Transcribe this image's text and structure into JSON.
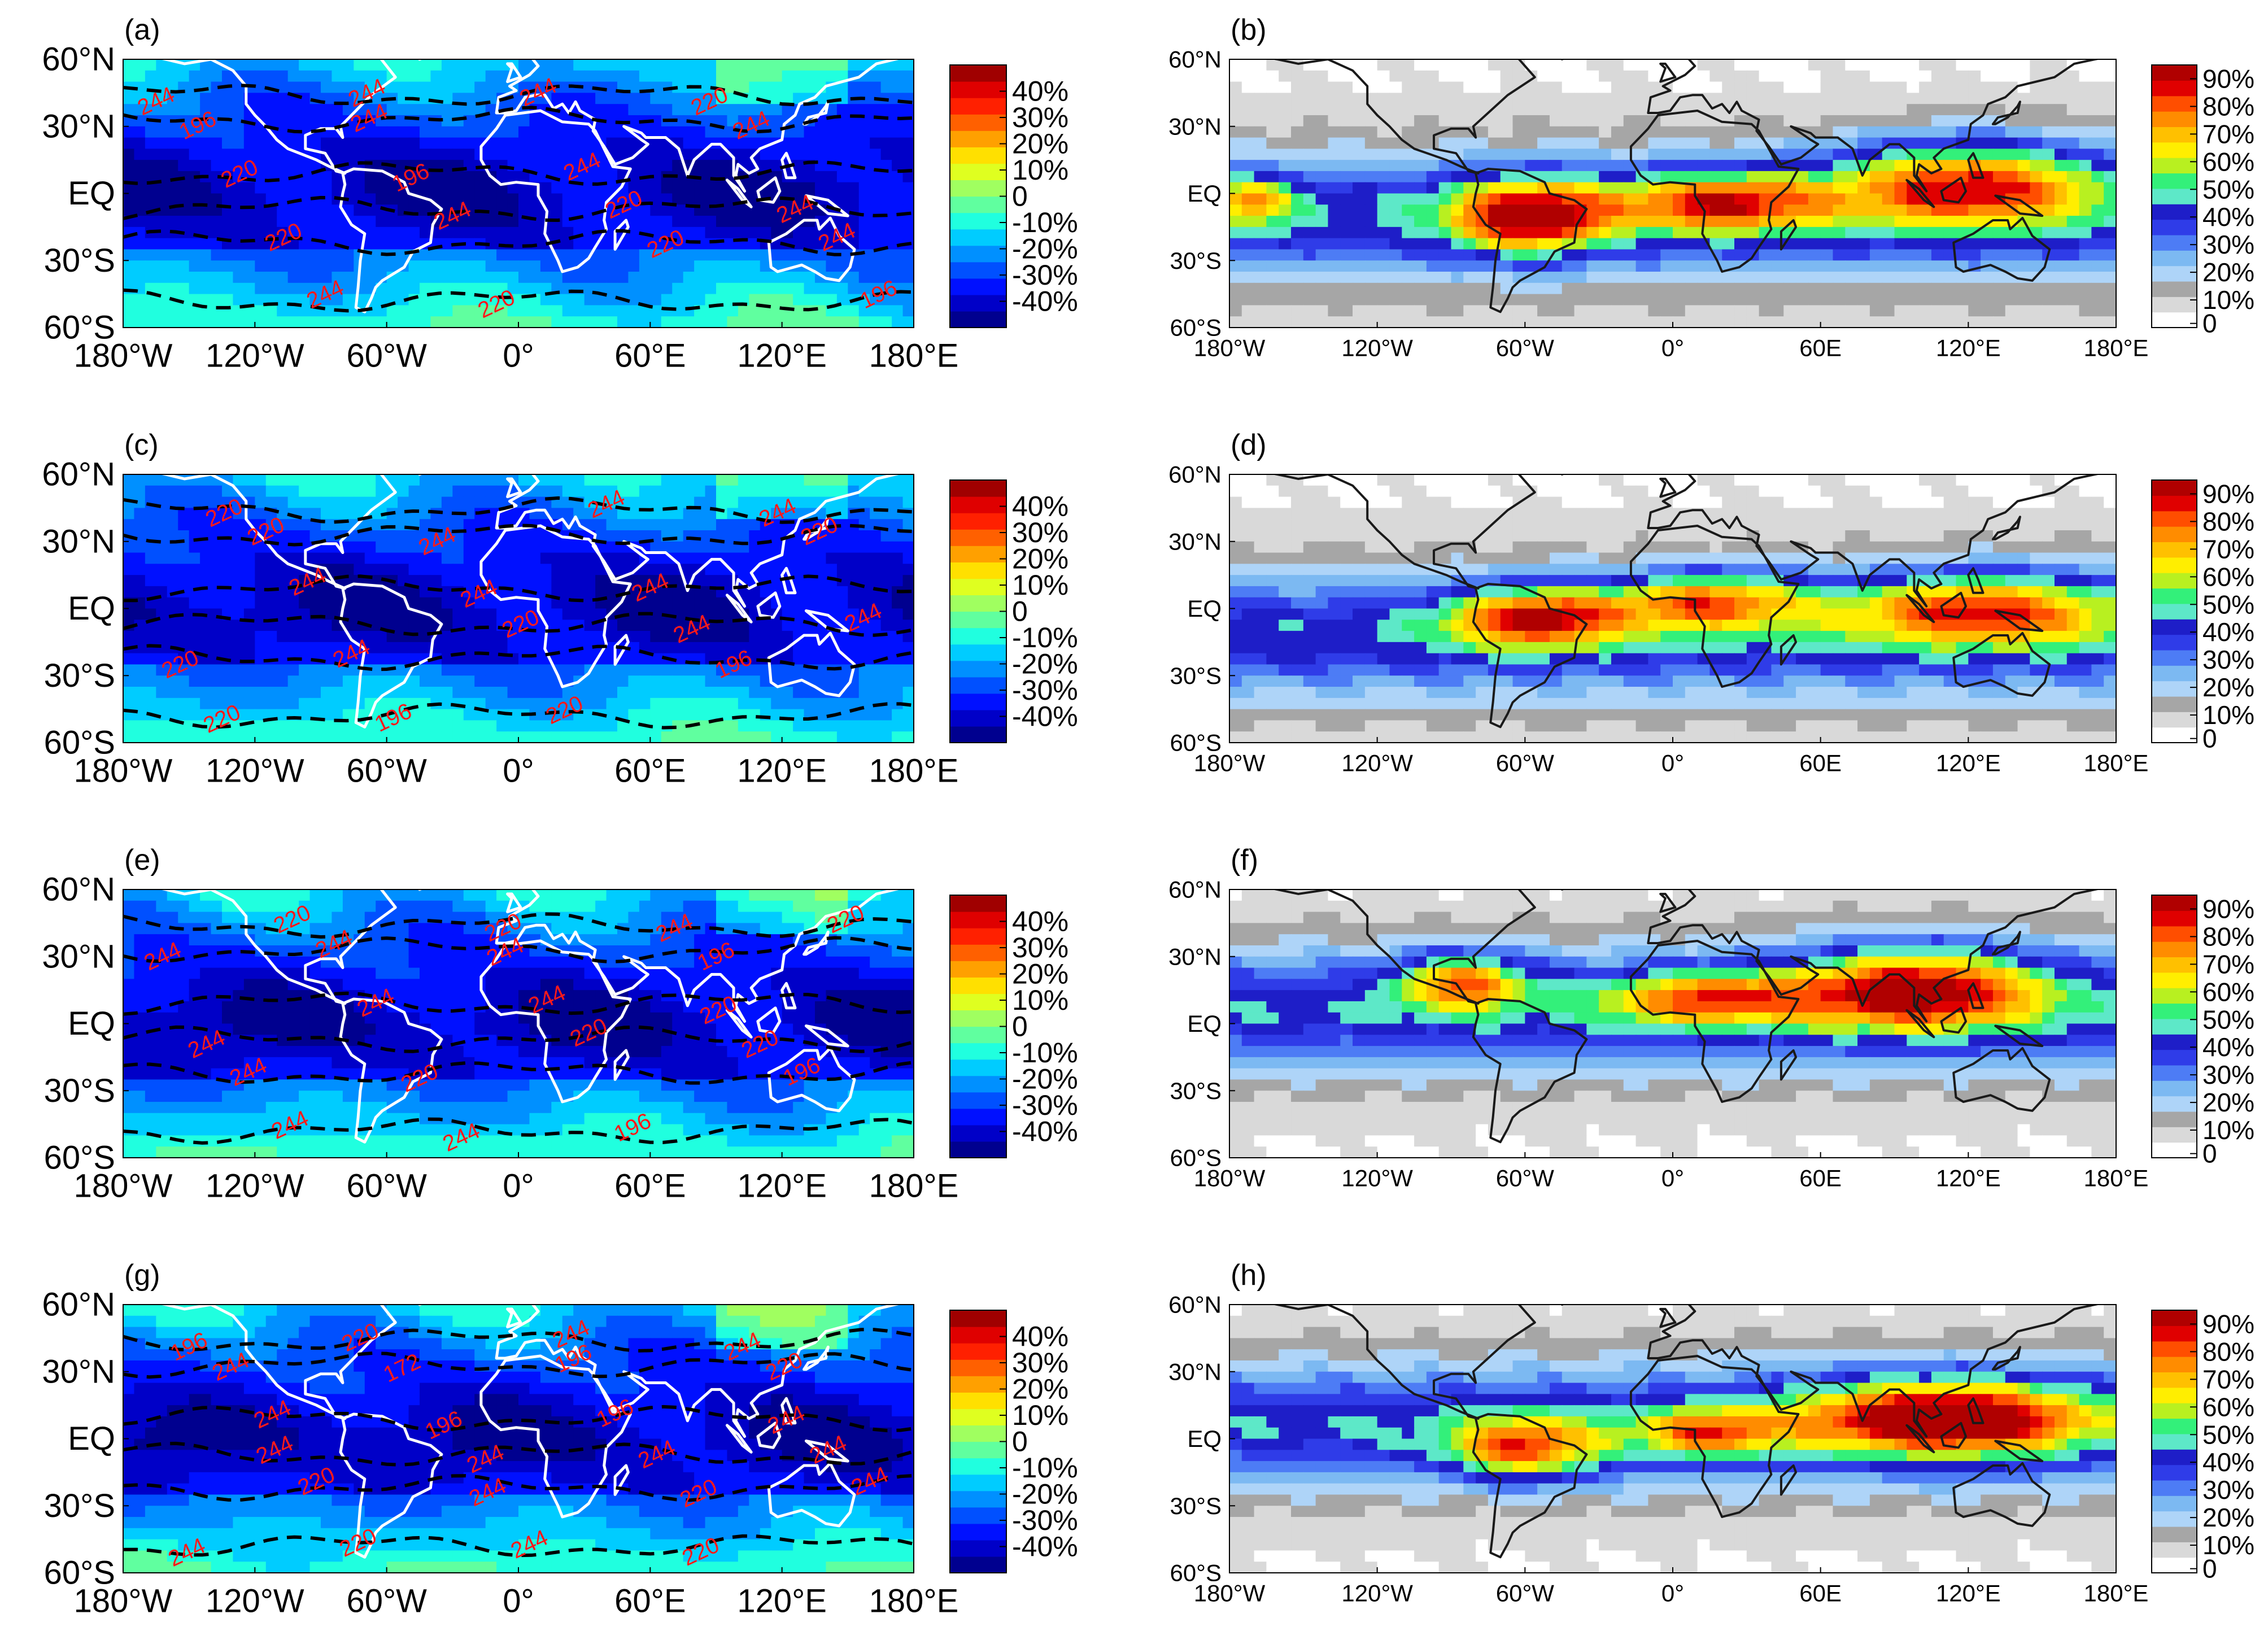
{
  "chart_data": [
    {
      "panel_label": "(a)",
      "type": "heatmap",
      "lat_ticks": [
        "60°N",
        "30°N",
        "EQ",
        "30°S",
        "60°S"
      ],
      "lon_ticks": [
        "180°W",
        "120°W",
        "60°W",
        "0°",
        "60°E",
        "120°E",
        "180°E"
      ],
      "colorbar_ticks": [
        "40%",
        "30%",
        "20%",
        "10%",
        "0",
        "-10%",
        "-20%",
        "-30%",
        "-40%"
      ],
      "colorbar_range": [
        -50,
        50
      ],
      "contour_labels": [
        "244",
        "244",
        "244",
        "244",
        "220",
        "220",
        "220",
        "196",
        "196",
        "220",
        "244",
        "244",
        "244",
        "244",
        "220",
        "244",
        "220",
        "196",
        "244"
      ]
    },
    {
      "panel_label": "(b)",
      "type": "heatmap",
      "lat_ticks": [
        "60°N",
        "30°N",
        "EQ",
        "30°S",
        "60°S"
      ],
      "lon_ticks": [
        "180°W",
        "120°W",
        "60°W",
        "0°",
        "60E",
        "120°E",
        "180°E"
      ],
      "colorbar_ticks": [
        "90%",
        "80%",
        "70%",
        "60%",
        "50%",
        "40%",
        "30%",
        "20%",
        "10%",
        "0"
      ],
      "colorbar_range": [
        0,
        95
      ]
    },
    {
      "panel_label": "(c)",
      "type": "heatmap",
      "lat_ticks": [
        "60°N",
        "30°N",
        "EQ",
        "30°S",
        "60°S"
      ],
      "lon_ticks": [
        "180°W",
        "120°W",
        "60°W",
        "0°",
        "60°E",
        "120°E",
        "180°E"
      ],
      "colorbar_ticks": [
        "40%",
        "30%",
        "20%",
        "10%",
        "0",
        "-10%",
        "-20%",
        "-30%",
        "-40%"
      ],
      "colorbar_range": [
        -50,
        50
      ],
      "contour_labels": [
        "220",
        "244",
        "244",
        "244",
        "244",
        "220",
        "244",
        "220",
        "244",
        "244",
        "220",
        "196",
        "244",
        "220",
        "244",
        "220",
        "196",
        "220"
      ]
    },
    {
      "panel_label": "(d)",
      "type": "heatmap",
      "lat_ticks": [
        "60°N",
        "30°N",
        "EQ",
        "30°S",
        "60°S"
      ],
      "lon_ticks": [
        "180°W",
        "120°W",
        "60°W",
        "0°",
        "60E",
        "120°E",
        "180°E"
      ],
      "colorbar_ticks": [
        "90%",
        "80%",
        "70%",
        "60%",
        "50%",
        "40%",
        "30%",
        "20%",
        "10%",
        "0"
      ],
      "colorbar_range": [
        0,
        95
      ]
    },
    {
      "panel_label": "(e)",
      "type": "heatmap",
      "lat_ticks": [
        "60°N",
        "30°N",
        "EQ",
        "30°S",
        "60°S"
      ],
      "lon_ticks": [
        "180°W",
        "120°W",
        "60°W",
        "0°",
        "60°E",
        "120°E",
        "180°E"
      ],
      "colorbar_ticks": [
        "40%",
        "30%",
        "20%",
        "10%",
        "0",
        "-10%",
        "-20%",
        "-30%",
        "-40%"
      ],
      "colorbar_range": [
        -50,
        50
      ],
      "contour_labels": [
        "220",
        "244",
        "220",
        "244",
        "220",
        "196",
        "220",
        "244",
        "244",
        "220",
        "244",
        "244",
        "244",
        "244",
        "244",
        "220",
        "196",
        "244",
        "220",
        "196"
      ]
    },
    {
      "panel_label": "(f)",
      "type": "heatmap",
      "lat_ticks": [
        "60°N",
        "30°N",
        "EQ",
        "30°S",
        "60°S"
      ],
      "lon_ticks": [
        "180°W",
        "120°W",
        "60°W",
        "0°",
        "60E",
        "120°E",
        "180°E"
      ],
      "colorbar_ticks": [
        "90%",
        "80%",
        "70%",
        "60%",
        "50%",
        "40%",
        "30%",
        "20%",
        "10%",
        "0"
      ],
      "colorbar_range": [
        0,
        95
      ]
    },
    {
      "panel_label": "(g)",
      "type": "heatmap",
      "lat_ticks": [
        "60°N",
        "30°N",
        "EQ",
        "30°S",
        "60°S"
      ],
      "lon_ticks": [
        "180°W",
        "120°W",
        "60°W",
        "0°",
        "60°E",
        "120°E",
        "180°E"
      ],
      "colorbar_ticks": [
        "40%",
        "30%",
        "20%",
        "10%",
        "0",
        "-10%",
        "-20%",
        "-30%",
        "-40%"
      ],
      "colorbar_range": [
        -50,
        50
      ],
      "contour_labels": [
        "220",
        "196",
        "244",
        "244",
        "244",
        "220",
        "196",
        "172",
        "196",
        "244",
        "220",
        "244",
        "244",
        "244",
        "196",
        "244",
        "244",
        "220",
        "244",
        "220",
        "244",
        "244",
        "220",
        "244"
      ]
    },
    {
      "panel_label": "(h)",
      "type": "heatmap",
      "lat_ticks": [
        "60°N",
        "30°N",
        "EQ",
        "30°S",
        "60°S"
      ],
      "lon_ticks": [
        "180°W",
        "120°W",
        "60°W",
        "0°",
        "60E",
        "120°E",
        "180°E"
      ],
      "colorbar_ticks": [
        "90%",
        "80%",
        "70%",
        "60%",
        "50%",
        "40%",
        "30%",
        "20%",
        "10%",
        "0"
      ],
      "colorbar_range": [
        0,
        95
      ]
    }
  ]
}
